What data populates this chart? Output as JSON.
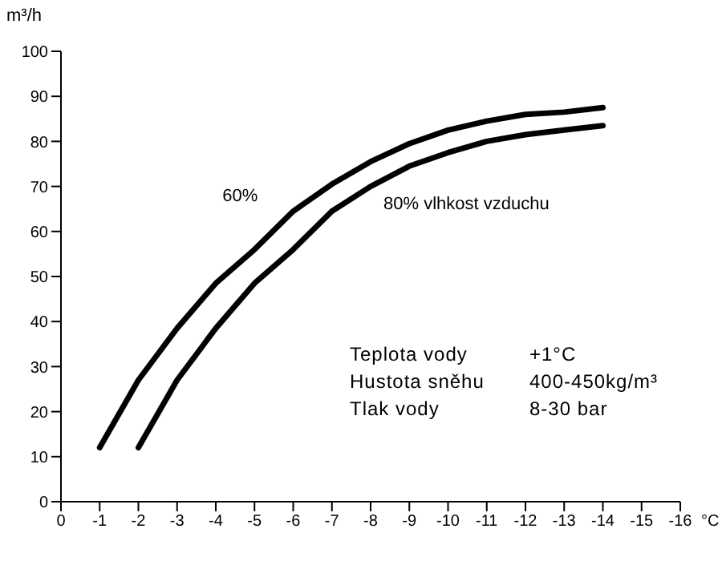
{
  "chart_data": {
    "type": "line",
    "xlabel": "°C",
    "ylabel": "m³/h",
    "xlim": [
      0,
      -16
    ],
    "xticks": [
      0,
      -1,
      -2,
      -3,
      -4,
      -5,
      -6,
      -7,
      -8,
      -9,
      -10,
      -11,
      -12,
      -13,
      -14,
      -15,
      -16
    ],
    "ylim": [
      0,
      100
    ],
    "yticks": [
      0,
      10,
      20,
      30,
      40,
      50,
      60,
      70,
      80,
      90,
      100
    ],
    "grid": false,
    "legend": false,
    "marker": "none",
    "line_style": "solid",
    "series": [
      {
        "name": "60%",
        "color": "#000000",
        "x": [
          -1,
          -2,
          -3,
          -4,
          -5,
          -6,
          -7,
          -8,
          -9,
          -10,
          -11,
          -12,
          -13,
          -14
        ],
        "values": [
          12,
          27,
          38.5,
          48.5,
          56,
          64.5,
          70.5,
          75.5,
          79.5,
          82.5,
          84.5,
          86,
          86.5,
          87.5
        ]
      },
      {
        "name": "80% vlhkost vzduchu",
        "color": "#000000",
        "x": [
          -2,
          -3,
          -4,
          -5,
          -6,
          -7,
          -8,
          -9,
          -10,
          -11,
          -12,
          -13,
          -14
        ],
        "values": [
          12,
          27,
          38.5,
          48.5,
          56,
          64.5,
          70,
          74.5,
          77.5,
          80,
          81.5,
          82.5,
          83.5
        ]
      }
    ],
    "annotations": [
      "Teplota vody",
      "+1°C",
      "Hustota sněhu",
      "400-450kg/m³",
      "Tlak vody",
      "8-30 bar"
    ]
  }
}
